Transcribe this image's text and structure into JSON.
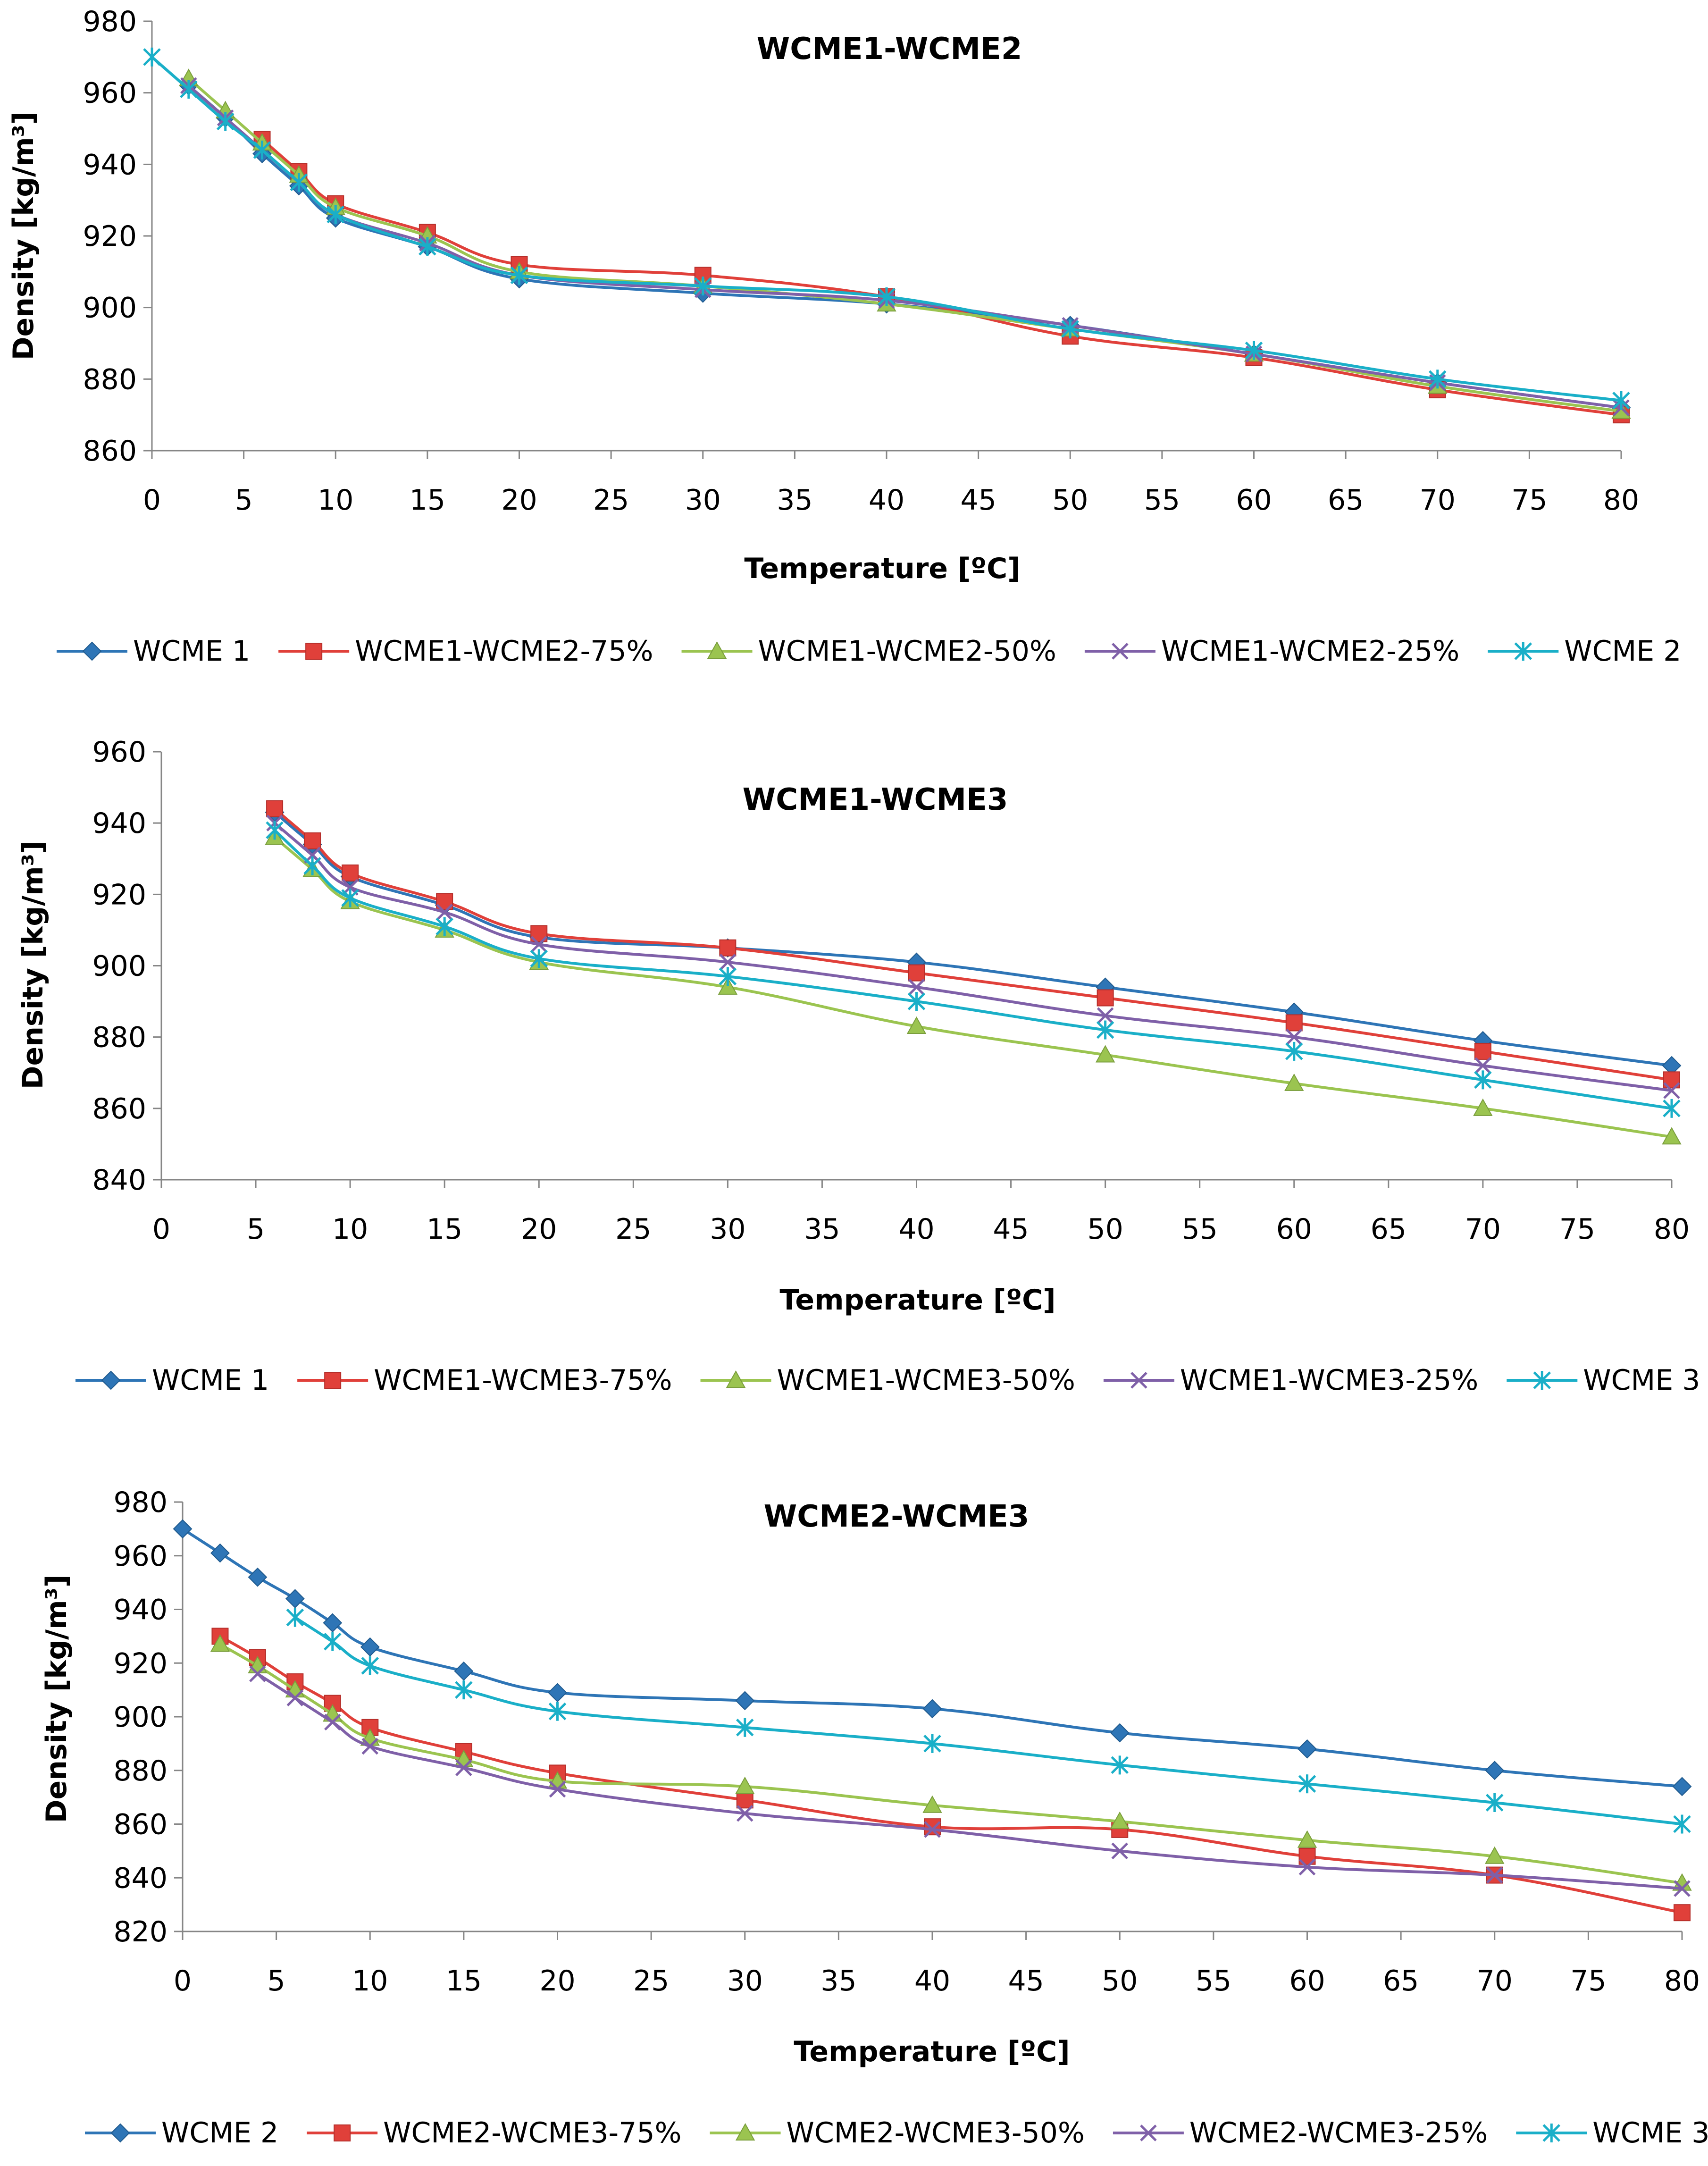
{
  "chart_data": [
    {
      "type": "line",
      "title": "WCME1-WCME2",
      "xlabel": "Temperature [ºC]",
      "ylabel": "Density [kg/m³]",
      "xlim": [
        0,
        80
      ],
      "ylim": [
        860,
        980
      ],
      "xticks": [
        0,
        5,
        10,
        15,
        20,
        25,
        30,
        35,
        40,
        45,
        50,
        55,
        60,
        65,
        70,
        75,
        80
      ],
      "yticks": [
        860,
        880,
        900,
        920,
        940,
        960,
        980
      ],
      "legend_position": "bottom",
      "series": [
        {
          "name": "WCME 1",
          "color": "#2E75B6",
          "marker": "diamond",
          "x": [
            2,
            4,
            6,
            8,
            10,
            15,
            20,
            30,
            40,
            50,
            60,
            70,
            80
          ],
          "y": [
            962,
            953,
            943,
            934,
            925,
            917,
            908,
            904,
            901,
            895,
            887,
            879,
            872
          ]
        },
        {
          "name": "WCME1-WCME2-75%",
          "color": "#E0403A",
          "marker": "square",
          "x": [
            6,
            8,
            10,
            15,
            20,
            30,
            40,
            50,
            60,
            70,
            80
          ],
          "y": [
            947,
            938,
            929,
            921,
            912,
            909,
            903,
            892,
            886,
            877,
            870
          ]
        },
        {
          "name": "WCME1-WCME2-50%",
          "color": "#9BC450",
          "marker": "triangle",
          "x": [
            2,
            4,
            6,
            8,
            10,
            15,
            20,
            30,
            40,
            50,
            60,
            70,
            80
          ],
          "y": [
            964,
            955,
            946,
            937,
            928,
            920,
            910,
            906,
            901,
            894,
            887,
            878,
            871
          ]
        },
        {
          "name": "WCME1-WCME2-25%",
          "color": "#7F60A8",
          "marker": "x",
          "x": [
            2,
            4,
            6,
            8,
            10,
            15,
            20,
            30,
            40,
            50,
            60,
            70,
            80
          ],
          "y": [
            962,
            953,
            944,
            935,
            926,
            918,
            909,
            905,
            902,
            895,
            887,
            879,
            872
          ]
        },
        {
          "name": "WCME 2",
          "color": "#1AAFC8",
          "marker": "star",
          "x": [
            0,
            2,
            4,
            6,
            8,
            10,
            15,
            20,
            30,
            40,
            50,
            60,
            70,
            80
          ],
          "y": [
            970,
            961,
            952,
            944,
            935,
            926,
            917,
            909,
            906,
            903,
            894,
            888,
            880,
            874
          ]
        }
      ]
    },
    {
      "type": "line",
      "title": "WCME1-WCME3",
      "xlabel": "Temperature [ºC]",
      "ylabel": "Density [kg/m³]",
      "xlim": [
        0,
        80
      ],
      "ylim": [
        840,
        960
      ],
      "xticks": [
        0,
        5,
        10,
        15,
        20,
        25,
        30,
        35,
        40,
        45,
        50,
        55,
        60,
        65,
        70,
        75,
        80
      ],
      "yticks": [
        840,
        860,
        880,
        900,
        920,
        940,
        960
      ],
      "legend_position": "bottom",
      "series": [
        {
          "name": "WCME 1",
          "color": "#2E75B6",
          "marker": "diamond",
          "x": [
            6,
            8,
            10,
            15,
            20,
            30,
            40,
            50,
            60,
            70,
            80
          ],
          "y": [
            943,
            934,
            925,
            917,
            908,
            905,
            901,
            894,
            887,
            879,
            872
          ]
        },
        {
          "name": "WCME1-WCME3-75%",
          "color": "#E0403A",
          "marker": "square",
          "x": [
            6,
            8,
            10,
            15,
            20,
            30,
            40,
            50,
            60,
            70,
            80
          ],
          "y": [
            944,
            935,
            926,
            918,
            909,
            905,
            898,
            891,
            884,
            876,
            868
          ]
        },
        {
          "name": "WCME1-WCME3-50%",
          "color": "#9BC450",
          "marker": "triangle",
          "x": [
            6,
            8,
            10,
            15,
            20,
            30,
            40,
            50,
            60,
            70,
            80
          ],
          "y": [
            936,
            927,
            918,
            910,
            901,
            894,
            883,
            875,
            867,
            860,
            852
          ]
        },
        {
          "name": "WCME1-WCME3-25%",
          "color": "#7F60A8",
          "marker": "x",
          "x": [
            6,
            8,
            10,
            15,
            20,
            30,
            40,
            50,
            60,
            70,
            80
          ],
          "y": [
            940,
            931,
            922,
            915,
            906,
            901,
            894,
            886,
            880,
            872,
            865
          ]
        },
        {
          "name": "WCME 3",
          "color": "#1AAFC8",
          "marker": "star",
          "x": [
            6,
            8,
            10,
            15,
            20,
            30,
            40,
            50,
            60,
            70,
            80
          ],
          "y": [
            938,
            928,
            919,
            911,
            902,
            897,
            890,
            882,
            876,
            868,
            860
          ]
        }
      ]
    },
    {
      "type": "line",
      "title": "WCME2-WCME3",
      "xlabel": "Temperature [ºC]",
      "ylabel": "Density [kg/m³]",
      "xlim": [
        0,
        80
      ],
      "ylim": [
        820,
        980
      ],
      "xticks": [
        0,
        5,
        10,
        15,
        20,
        25,
        30,
        35,
        40,
        45,
        50,
        55,
        60,
        65,
        70,
        75,
        80
      ],
      "yticks": [
        820,
        840,
        860,
        880,
        900,
        920,
        940,
        960,
        980
      ],
      "legend_position": "bottom",
      "series": [
        {
          "name": "WCME 2",
          "color": "#2E75B6",
          "marker": "diamond",
          "x": [
            0,
            2,
            4,
            6,
            8,
            10,
            15,
            20,
            30,
            40,
            50,
            60,
            70,
            80
          ],
          "y": [
            970,
            961,
            952,
            944,
            935,
            926,
            917,
            909,
            906,
            903,
            894,
            888,
            880,
            874
          ]
        },
        {
          "name": "WCME2-WCME3-75%",
          "color": "#E0403A",
          "marker": "square",
          "x": [
            2,
            4,
            6,
            8,
            10,
            15,
            20,
            30,
            40,
            50,
            60,
            70,
            80
          ],
          "y": [
            930,
            922,
            913,
            905,
            896,
            887,
            879,
            869,
            859,
            858,
            848,
            841,
            827
          ]
        },
        {
          "name": "WCME2-WCME3-50%",
          "color": "#9BC450",
          "marker": "triangle",
          "x": [
            2,
            4,
            6,
            8,
            10,
            15,
            20,
            30,
            40,
            50,
            60,
            70,
            80
          ],
          "y": [
            927,
            919,
            910,
            901,
            892,
            884,
            876,
            874,
            867,
            861,
            854,
            848,
            838
          ]
        },
        {
          "name": "WCME2-WCME3-25%",
          "color": "#7F60A8",
          "marker": "x",
          "x": [
            4,
            6,
            8,
            10,
            15,
            20,
            30,
            40,
            50,
            60,
            70,
            80
          ],
          "y": [
            916,
            907,
            898,
            889,
            881,
            873,
            864,
            858,
            850,
            844,
            841,
            836
          ]
        },
        {
          "name": "WCME 3",
          "color": "#1AAFC8",
          "marker": "star",
          "x": [
            6,
            8,
            10,
            15,
            20,
            30,
            40,
            50,
            60,
            70,
            80
          ],
          "y": [
            937,
            928,
            919,
            910,
            902,
            896,
            890,
            882,
            875,
            868,
            860
          ]
        }
      ]
    }
  ]
}
